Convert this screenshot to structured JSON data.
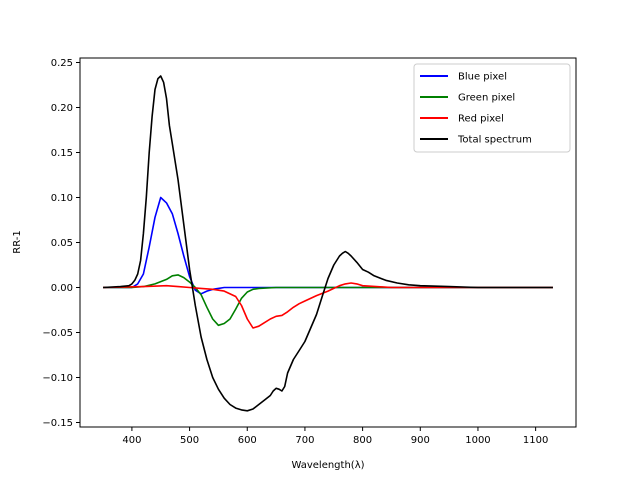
{
  "chart_data": {
    "type": "line",
    "title": "",
    "xlabel": "Wavelength(λ)",
    "ylabel": "RR-1",
    "xlim": [
      310,
      1170
    ],
    "ylim": [
      -0.155,
      0.255
    ],
    "xticks": [
      400,
      500,
      600,
      700,
      800,
      900,
      1000,
      1100
    ],
    "yticks": [
      -0.15,
      -0.1,
      -0.05,
      0.0,
      0.05,
      0.1,
      0.15,
      0.2,
      0.25
    ],
    "ytick_labels": [
      "−0.15",
      "−0.10",
      "−0.05",
      "0.00",
      "0.05",
      "0.10",
      "0.15",
      "0.20",
      "0.25"
    ],
    "grid": false,
    "legend_position": "top-right",
    "series": [
      {
        "name": "Blue pixel",
        "color": "#0000ff",
        "x": [
          350,
          380,
          400,
          410,
          420,
          430,
          440,
          450,
          460,
          470,
          480,
          490,
          500,
          510,
          520,
          530,
          540,
          550,
          560,
          600,
          650,
          700,
          750,
          800,
          850,
          900,
          1000,
          1100,
          1130
        ],
        "y": [
          0.0,
          0.0,
          0.0,
          0.004,
          0.015,
          0.045,
          0.078,
          0.1,
          0.094,
          0.082,
          0.06,
          0.035,
          0.012,
          -0.003,
          -0.007,
          -0.004,
          -0.002,
          -0.001,
          0.0,
          0.0,
          0.0,
          0.0,
          0.0,
          0.0,
          0.0,
          0.0,
          0.0,
          0.0,
          0.0
        ]
      },
      {
        "name": "Green pixel",
        "color": "#008000",
        "x": [
          350,
          400,
          420,
          440,
          460,
          470,
          480,
          490,
          500,
          510,
          520,
          530,
          540,
          550,
          560,
          570,
          580,
          590,
          600,
          610,
          620,
          650,
          700,
          750,
          800,
          900,
          1000,
          1130
        ],
        "y": [
          0.0,
          0.0,
          0.001,
          0.004,
          0.009,
          0.013,
          0.014,
          0.011,
          0.006,
          0.0,
          -0.008,
          -0.022,
          -0.035,
          -0.042,
          -0.04,
          -0.035,
          -0.024,
          -0.012,
          -0.005,
          -0.002,
          -0.001,
          0.0,
          0.0,
          0.0,
          0.0,
          0.0,
          0.0,
          0.0
        ]
      },
      {
        "name": "Red pixel",
        "color": "#ff0000",
        "x": [
          350,
          420,
          460,
          480,
          500,
          520,
          540,
          560,
          580,
          590,
          600,
          610,
          620,
          630,
          640,
          650,
          660,
          670,
          680,
          690,
          700,
          720,
          740,
          760,
          770,
          780,
          790,
          800,
          850,
          900,
          1000,
          1100,
          1130
        ],
        "y": [
          0.0,
          0.001,
          0.002,
          0.001,
          0.0,
          -0.001,
          -0.002,
          -0.004,
          -0.01,
          -0.02,
          -0.035,
          -0.045,
          -0.043,
          -0.039,
          -0.035,
          -0.032,
          -0.031,
          -0.027,
          -0.022,
          -0.018,
          -0.015,
          -0.009,
          -0.004,
          0.002,
          0.004,
          0.005,
          0.004,
          0.002,
          0.0,
          0.0,
          0.0,
          0.0,
          0.0
        ]
      },
      {
        "name": "Total spectrum",
        "color": "#000000",
        "x": [
          350,
          380,
          395,
          400,
          405,
          410,
          415,
          420,
          425,
          430,
          435,
          440,
          445,
          450,
          455,
          460,
          465,
          470,
          480,
          490,
          500,
          510,
          520,
          530,
          540,
          550,
          560,
          570,
          580,
          590,
          600,
          610,
          620,
          630,
          640,
          645,
          650,
          655,
          660,
          665,
          670,
          680,
          690,
          700,
          710,
          720,
          730,
          740,
          750,
          760,
          765,
          770,
          775,
          780,
          790,
          800,
          810,
          820,
          840,
          860,
          880,
          900,
          950,
          1000,
          1050,
          1100,
          1130
        ],
        "y": [
          0.0,
          0.001,
          0.002,
          0.004,
          0.008,
          0.015,
          0.03,
          0.06,
          0.1,
          0.15,
          0.19,
          0.22,
          0.232,
          0.235,
          0.228,
          0.21,
          0.18,
          0.16,
          0.12,
          0.07,
          0.02,
          -0.02,
          -0.055,
          -0.08,
          -0.1,
          -0.113,
          -0.123,
          -0.13,
          -0.134,
          -0.136,
          -0.137,
          -0.135,
          -0.13,
          -0.125,
          -0.12,
          -0.115,
          -0.112,
          -0.113,
          -0.115,
          -0.11,
          -0.095,
          -0.08,
          -0.07,
          -0.06,
          -0.045,
          -0.03,
          -0.01,
          0.01,
          0.025,
          0.035,
          0.038,
          0.04,
          0.038,
          0.035,
          0.028,
          0.02,
          0.017,
          0.013,
          0.008,
          0.005,
          0.003,
          0.002,
          0.001,
          0.0,
          0.0,
          0.0,
          0.0
        ]
      }
    ]
  }
}
